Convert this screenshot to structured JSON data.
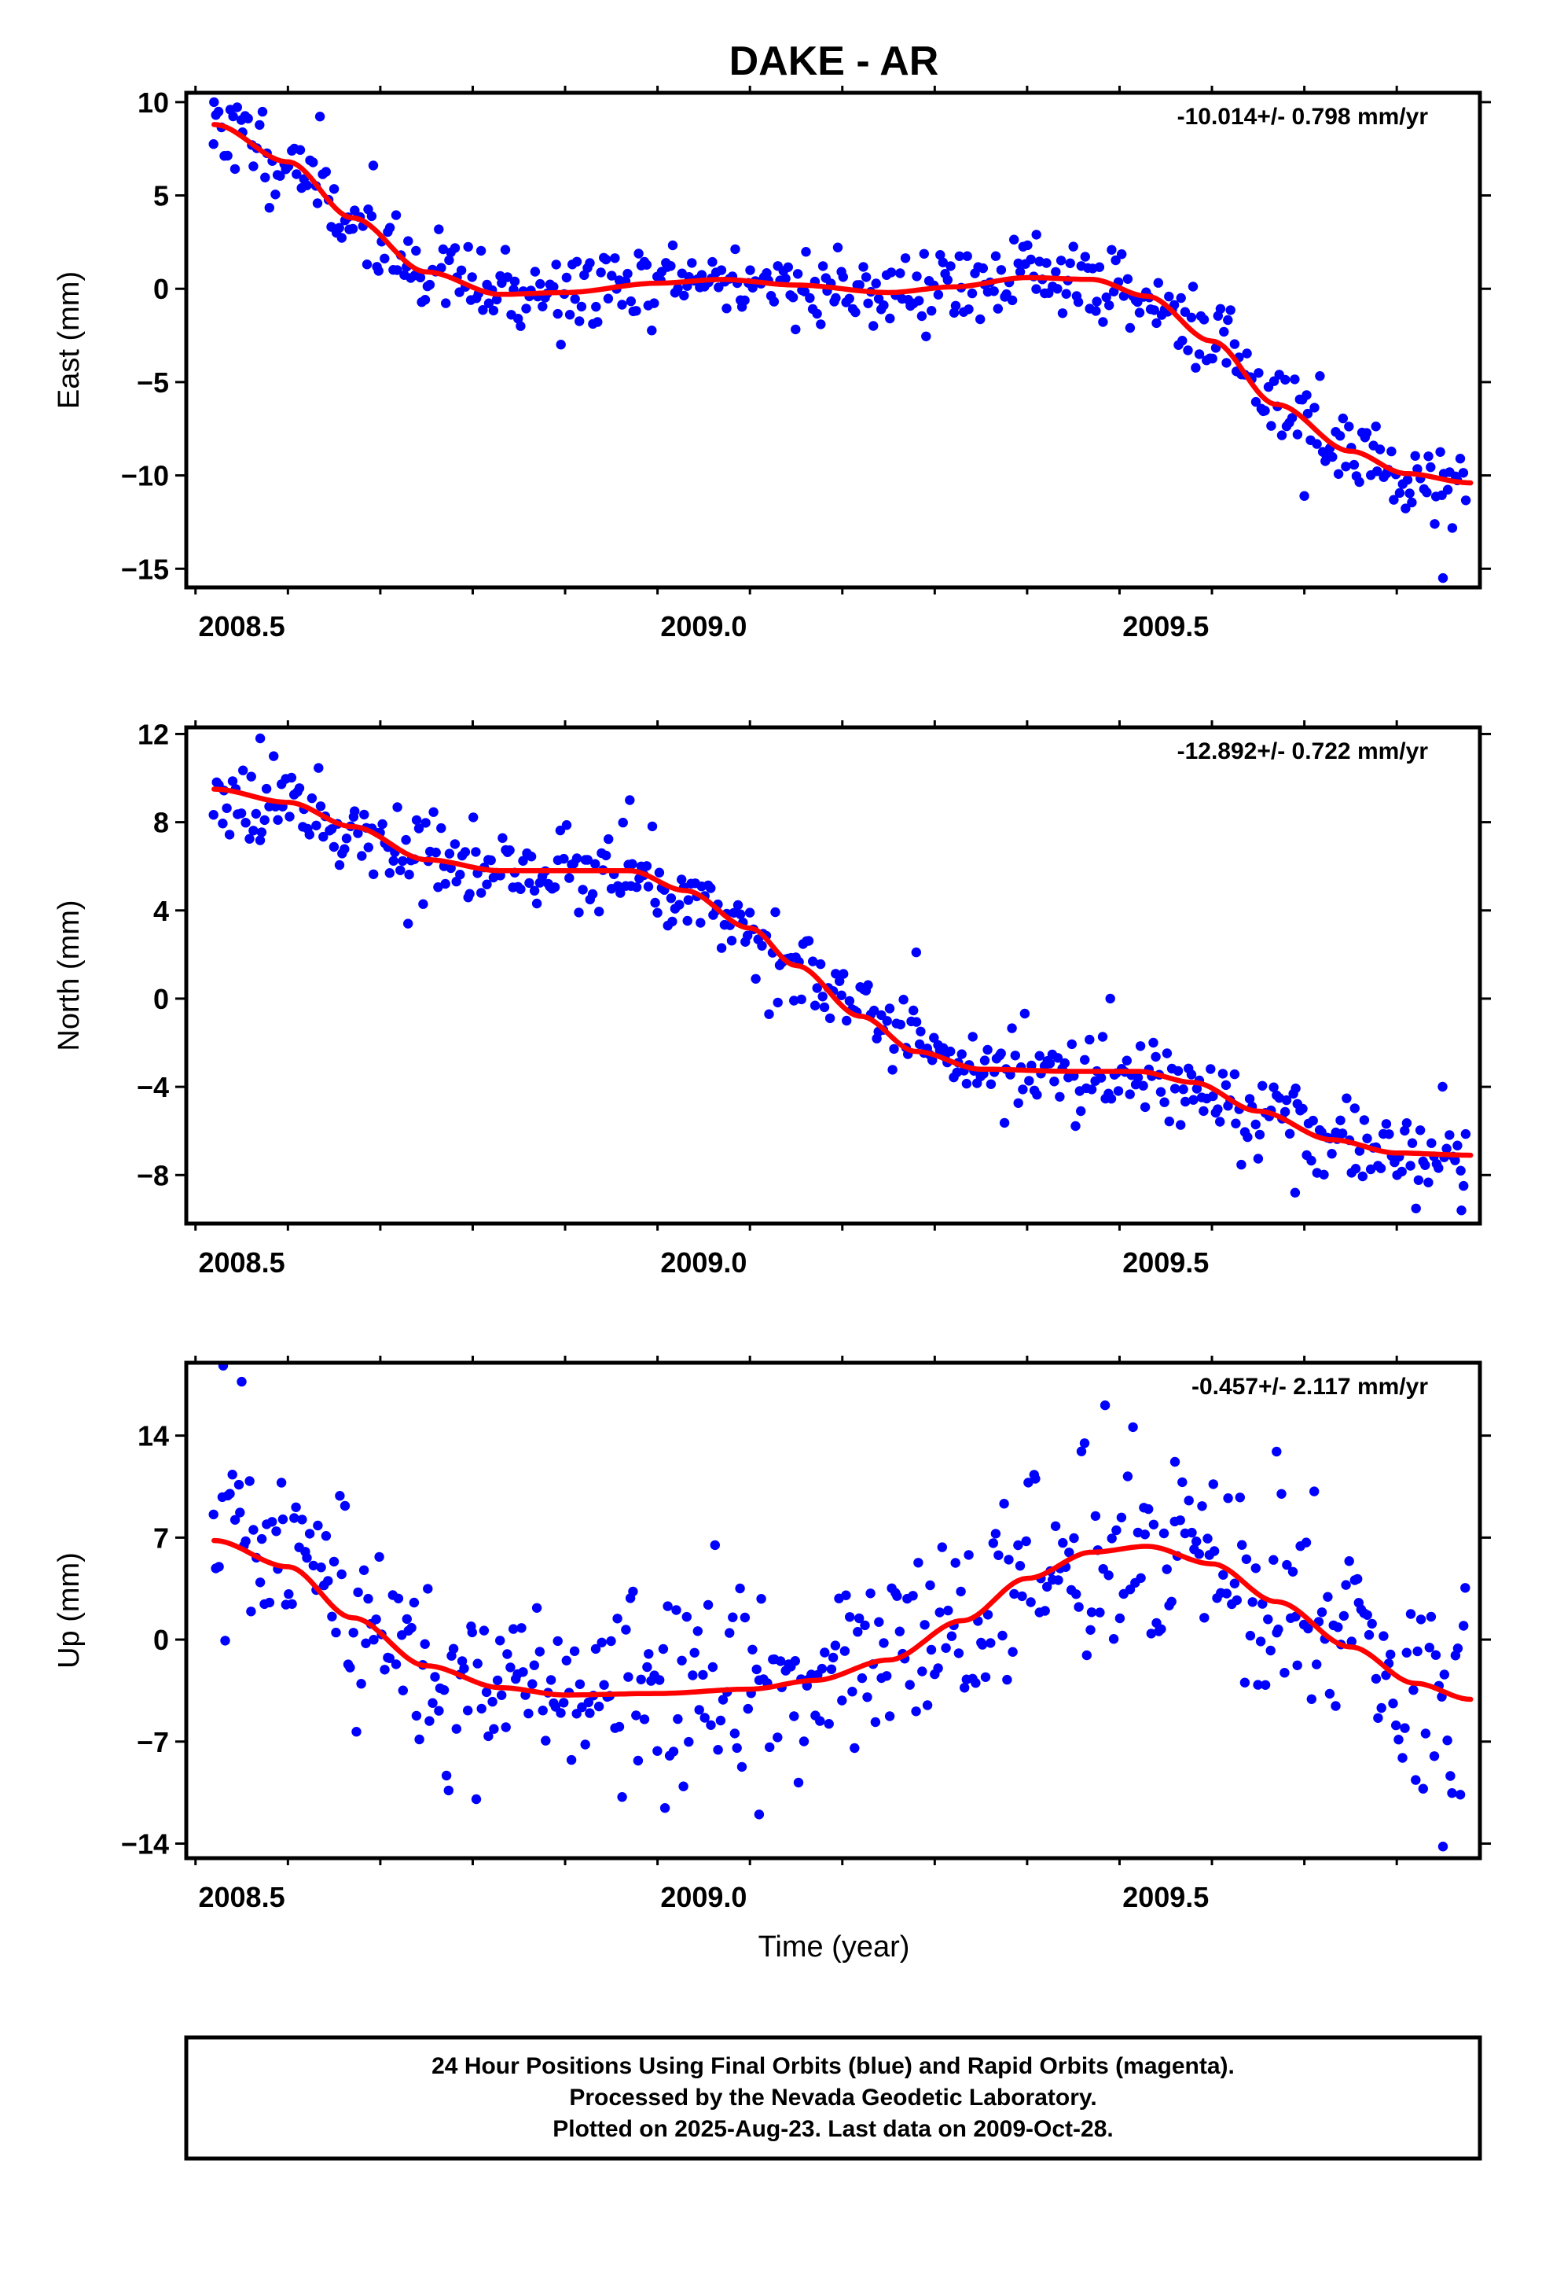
{
  "title": "DAKE - AR",
  "xlabel": "Time (year)",
  "footer": {
    "line1": "24 Hour Positions Using Final Orbits (blue) and Rapid Orbits (magenta).",
    "line2": "Processed by the Nevada Geodetic Laboratory.",
    "line3": "Plotted on 2025-Aug-23. Last data on 2009-Oct-28."
  },
  "colors": {
    "final_orbits": "#0000ff",
    "fit": "#ff0000",
    "frame": "#000000"
  },
  "chart_data": [
    {
      "type": "scatter",
      "ylabel": "East (mm)",
      "rate_text": "-10.014+/- 0.798 mm/yr",
      "xlim": [
        2008.44,
        2009.84
      ],
      "ylim": [
        -16,
        10.5
      ],
      "xticks": [
        2008.5,
        2009.0,
        2009.5
      ],
      "xtick_labels": [
        "2008.5",
        "2009.0",
        "2009.5"
      ],
      "yticks": [
        10,
        5,
        0,
        -5,
        -10,
        -15
      ],
      "ytick_labels": [
        "10",
        "5",
        "0",
        "−5",
        "−10",
        "−15"
      ],
      "fit_knots": [
        [
          2008.47,
          8.8
        ],
        [
          2008.55,
          6.8
        ],
        [
          2008.62,
          3.8
        ],
        [
          2008.7,
          0.9
        ],
        [
          2008.78,
          -0.3
        ],
        [
          2008.85,
          -0.2
        ],
        [
          2008.95,
          0.3
        ],
        [
          2009.02,
          0.5
        ],
        [
          2009.1,
          0.2
        ],
        [
          2009.2,
          -0.2
        ],
        [
          2009.27,
          0.1
        ],
        [
          2009.35,
          0.6
        ],
        [
          2009.42,
          0.5
        ],
        [
          2009.48,
          -0.4
        ],
        [
          2009.55,
          -2.8
        ],
        [
          2009.62,
          -6.2
        ],
        [
          2009.7,
          -8.7
        ],
        [
          2009.76,
          -9.9
        ],
        [
          2009.83,
          -10.4
        ]
      ],
      "noise_sd": 1.1,
      "outliers": [
        [
          2008.47,
          10.0
        ],
        [
          2009.36,
          2.9
        ],
        [
          2009.8,
          -15.5
        ],
        [
          2009.65,
          -11.1
        ]
      ],
      "seed": 11
    },
    {
      "type": "scatter",
      "ylabel": "North (mm)",
      "rate_text": "-12.892+/- 0.722 mm/yr",
      "xlim": [
        2008.44,
        2009.84
      ],
      "ylim": [
        -10.2,
        12.3
      ],
      "xticks": [
        2008.5,
        2009.0,
        2009.5
      ],
      "xtick_labels": [
        "2008.5",
        "2009.0",
        "2009.5"
      ],
      "yticks": [
        12,
        8,
        4,
        0,
        -4,
        -8
      ],
      "ytick_labels": [
        "12",
        "8",
        "4",
        "0",
        "−4",
        "−8"
      ],
      "fit_knots": [
        [
          2008.47,
          9.5
        ],
        [
          2008.55,
          8.9
        ],
        [
          2008.62,
          7.8
        ],
        [
          2008.7,
          6.3
        ],
        [
          2008.78,
          5.8
        ],
        [
          2008.85,
          5.8
        ],
        [
          2008.92,
          5.8
        ],
        [
          2008.98,
          4.9
        ],
        [
          2009.05,
          3.2
        ],
        [
          2009.1,
          1.5
        ],
        [
          2009.17,
          -0.8
        ],
        [
          2009.23,
          -2.4
        ],
        [
          2009.3,
          -3.2
        ],
        [
          2009.4,
          -3.3
        ],
        [
          2009.47,
          -3.3
        ],
        [
          2009.53,
          -3.8
        ],
        [
          2009.6,
          -5.1
        ],
        [
          2009.68,
          -6.4
        ],
        [
          2009.75,
          -7.0
        ],
        [
          2009.83,
          -7.1
        ]
      ],
      "noise_sd": 0.9,
      "outliers": [
        [
          2008.52,
          11.8
        ],
        [
          2008.92,
          9.0
        ],
        [
          2008.68,
          3.4
        ],
        [
          2009.23,
          2.1
        ],
        [
          2009.44,
          0.0
        ],
        [
          2009.82,
          -9.6
        ],
        [
          2009.64,
          -8.8
        ]
      ],
      "seed": 23
    },
    {
      "type": "scatter",
      "ylabel": "Up (mm)",
      "rate_text": "-0.457+/- 2.117 mm/yr",
      "xlim": [
        2008.44,
        2009.84
      ],
      "ylim": [
        -15,
        19
      ],
      "xticks": [
        2008.5,
        2009.0,
        2009.5
      ],
      "xtick_labels": [
        "2008.5",
        "2009.0",
        "2009.5"
      ],
      "yticks": [
        14,
        7,
        0,
        -7,
        -14
      ],
      "ytick_labels": [
        "14",
        "7",
        "0",
        "−7",
        "−14"
      ],
      "fit_knots": [
        [
          2008.47,
          6.8
        ],
        [
          2008.55,
          5.0
        ],
        [
          2008.62,
          1.5
        ],
        [
          2008.7,
          -1.8
        ],
        [
          2008.78,
          -3.3
        ],
        [
          2008.85,
          -3.8
        ],
        [
          2008.95,
          -3.7
        ],
        [
          2009.05,
          -3.4
        ],
        [
          2009.12,
          -2.8
        ],
        [
          2009.2,
          -1.4
        ],
        [
          2009.28,
          1.3
        ],
        [
          2009.35,
          4.2
        ],
        [
          2009.42,
          6.0
        ],
        [
          2009.48,
          6.4
        ],
        [
          2009.55,
          5.2
        ],
        [
          2009.62,
          2.6
        ],
        [
          2009.7,
          -0.5
        ],
        [
          2009.77,
          -3.0
        ],
        [
          2009.83,
          -4.1
        ]
      ],
      "noise_sd": 3.3,
      "outliers": [
        [
          2008.48,
          18.8
        ],
        [
          2008.5,
          17.7
        ],
        [
          2009.06,
          -12.0
        ],
        [
          2009.8,
          -14.2
        ],
        [
          2009.51,
          12.2
        ],
        [
          2009.62,
          12.9
        ]
      ],
      "seed": 37
    }
  ]
}
